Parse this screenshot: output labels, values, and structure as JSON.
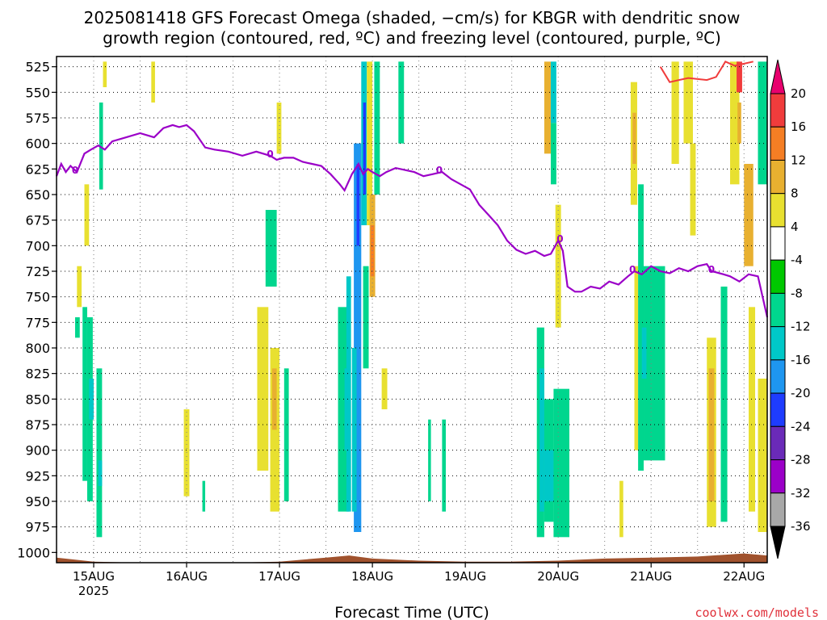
{
  "chart_data": {
    "type": "heatmap",
    "title_line1": "2025081418 GFS Forecast Omega (shaded, −cm/s) for KBGR with dendritic snow",
    "title_line2": "growth region (contoured, red, ºC) and freezing level (contoured, purple, ºC)",
    "xlabel": "Forecast Time (UTC)",
    "credit": "coolwx.com/models",
    "y_axis": {
      "unit": "hPa",
      "inverted": true,
      "range": [
        1010,
        515
      ],
      "ticks": [
        525,
        550,
        575,
        600,
        625,
        650,
        675,
        700,
        725,
        750,
        775,
        800,
        825,
        850,
        875,
        900,
        925,
        950,
        975,
        1000
      ]
    },
    "x_axis": {
      "range": [
        14.6,
        22.25
      ],
      "ticks": [
        {
          "day": 15,
          "label": "15AUG",
          "sublabel": "2025"
        },
        {
          "day": 16,
          "label": "16AUG",
          "sublabel": ""
        },
        {
          "day": 17,
          "label": "17AUG",
          "sublabel": ""
        },
        {
          "day": 18,
          "label": "18AUG",
          "sublabel": ""
        },
        {
          "day": 19,
          "label": "19AUG",
          "sublabel": ""
        },
        {
          "day": 20,
          "label": "20AUG",
          "sublabel": ""
        },
        {
          "day": 21,
          "label": "21AUG",
          "sublabel": ""
        },
        {
          "day": 22,
          "label": "22AUG",
          "sublabel": ""
        }
      ]
    },
    "colorbar": {
      "labels": [
        "20",
        "16",
        "12",
        "8",
        "4",
        "-4",
        "-8",
        "-12",
        "-16",
        "-20",
        "-24",
        "-28",
        "-32",
        "-36"
      ],
      "colors": [
        "#f03c3c",
        "#f57e24",
        "#e8b030",
        "#e8e030",
        "#ffffff",
        "#00c800",
        "#00d68e",
        "#00c8c8",
        "#1e96f0",
        "#1e3cff",
        "#6a2ab8",
        "#9b00c8",
        "#a8a8a8"
      ],
      "top_arrow_color": "#e8006e",
      "bottom_arrow_color": "#000000"
    },
    "omega_cells": [
      {
        "t0": 14.8,
        "t1": 14.85,
        "p0": 770,
        "p1": 790,
        "v": -8
      },
      {
        "t0": 14.88,
        "t1": 14.93,
        "p0": 760,
        "p1": 930,
        "v": -8
      },
      {
        "t0": 14.93,
        "t1": 14.99,
        "p0": 770,
        "p1": 950,
        "v": -8
      },
      {
        "t0": 14.95,
        "t1": 15.0,
        "p0": 830,
        "p1": 870,
        "v": -12
      },
      {
        "t0": 15.03,
        "t1": 15.09,
        "p0": 820,
        "p1": 985,
        "v": -8
      },
      {
        "t0": 15.05,
        "t1": 15.09,
        "p0": 910,
        "p1": 935,
        "v": -12
      },
      {
        "t0": 15.06,
        "t1": 15.1,
        "p0": 560,
        "p1": 645,
        "v": -8
      },
      {
        "t0": 14.9,
        "t1": 14.95,
        "p0": 640,
        "p1": 700,
        "v": 4
      },
      {
        "t0": 14.82,
        "t1": 14.87,
        "p0": 720,
        "p1": 760,
        "v": 4
      },
      {
        "t0": 15.1,
        "t1": 15.14,
        "p0": 520,
        "p1": 545,
        "v": 4
      },
      {
        "t0": 15.62,
        "t1": 15.66,
        "p0": 520,
        "p1": 560,
        "v": 4
      },
      {
        "t0": 15.97,
        "t1": 16.03,
        "p0": 860,
        "p1": 945,
        "v": 4
      },
      {
        "t0": 16.17,
        "t1": 16.2,
        "p0": 930,
        "p1": 960,
        "v": -8
      },
      {
        "t0": 16.85,
        "t1": 16.97,
        "p0": 665,
        "p1": 740,
        "v": -8
      },
      {
        "t0": 16.76,
        "t1": 16.88,
        "p0": 760,
        "p1": 920,
        "v": 4
      },
      {
        "t0": 16.9,
        "t1": 17.0,
        "p0": 800,
        "p1": 960,
        "v": 4
      },
      {
        "t0": 16.92,
        "t1": 16.97,
        "p0": 820,
        "p1": 880,
        "v": 12
      },
      {
        "t0": 16.97,
        "t1": 17.02,
        "p0": 560,
        "p1": 610,
        "v": 4
      },
      {
        "t0": 17.05,
        "t1": 17.1,
        "p0": 820,
        "p1": 950,
        "v": -8
      },
      {
        "t0": 17.63,
        "t1": 17.75,
        "p0": 760,
        "p1": 960,
        "v": -8
      },
      {
        "t0": 17.7,
        "t1": 17.76,
        "p0": 820,
        "p1": 900,
        "v": -12
      },
      {
        "t0": 17.72,
        "t1": 17.77,
        "p0": 730,
        "p1": 960,
        "v": -12
      },
      {
        "t0": 17.8,
        "t1": 17.88,
        "p0": 600,
        "p1": 980,
        "v": -16
      },
      {
        "t0": 17.83,
        "t1": 17.86,
        "p0": 620,
        "p1": 700,
        "v": -20
      },
      {
        "t0": 17.78,
        "t1": 17.83,
        "p0": 800,
        "p1": 960,
        "v": -12
      },
      {
        "t0": 17.88,
        "t1": 17.94,
        "p0": 520,
        "p1": 680,
        "v": -12
      },
      {
        "t0": 17.9,
        "t1": 17.93,
        "p0": 560,
        "p1": 650,
        "v": -20
      },
      {
        "t0": 17.94,
        "t1": 18.0,
        "p0": 520,
        "p1": 680,
        "v": 4
      },
      {
        "t0": 17.97,
        "t1": 18.03,
        "p0": 650,
        "p1": 750,
        "v": 12
      },
      {
        "t0": 17.98,
        "t1": 18.02,
        "p0": 680,
        "p1": 730,
        "v": 16
      },
      {
        "t0": 17.9,
        "t1": 17.96,
        "p0": 720,
        "p1": 820,
        "v": -8
      },
      {
        "t0": 18.02,
        "t1": 18.08,
        "p0": 520,
        "p1": 650,
        "v": -8
      },
      {
        "t0": 18.1,
        "t1": 18.16,
        "p0": 820,
        "p1": 860,
        "v": 4
      },
      {
        "t0": 18.28,
        "t1": 18.34,
        "p0": 520,
        "p1": 600,
        "v": -8
      },
      {
        "t0": 18.6,
        "t1": 18.63,
        "p0": 870,
        "p1": 950,
        "v": -8
      },
      {
        "t0": 18.75,
        "t1": 18.79,
        "p0": 870,
        "p1": 960,
        "v": -8
      },
      {
        "t0": 19.85,
        "t1": 19.92,
        "p0": 520,
        "p1": 610,
        "v": 12
      },
      {
        "t0": 19.92,
        "t1": 19.98,
        "p0": 520,
        "p1": 580,
        "v": -12
      },
      {
        "t0": 19.92,
        "t1": 19.98,
        "p0": 580,
        "p1": 640,
        "v": -8
      },
      {
        "t0": 19.97,
        "t1": 20.03,
        "p0": 660,
        "p1": 780,
        "v": 4
      },
      {
        "t0": 19.77,
        "t1": 19.85,
        "p0": 780,
        "p1": 985,
        "v": -8
      },
      {
        "t0": 19.8,
        "t1": 19.85,
        "p0": 820,
        "p1": 960,
        "v": -12
      },
      {
        "t0": 19.85,
        "t1": 19.95,
        "p0": 850,
        "p1": 970,
        "v": -8
      },
      {
        "t0": 19.85,
        "t1": 19.95,
        "p0": 900,
        "p1": 950,
        "v": -12
      },
      {
        "t0": 19.95,
        "t1": 20.12,
        "p0": 840,
        "p1": 985,
        "v": -8
      },
      {
        "t0": 20.66,
        "t1": 20.7,
        "p0": 930,
        "p1": 985,
        "v": 4
      },
      {
        "t0": 20.78,
        "t1": 20.85,
        "p0": 540,
        "p1": 660,
        "v": 4
      },
      {
        "t0": 20.8,
        "t1": 20.84,
        "p0": 570,
        "p1": 620,
        "v": 12
      },
      {
        "t0": 20.82,
        "t1": 20.86,
        "p0": 720,
        "p1": 900,
        "v": 4
      },
      {
        "t0": 20.86,
        "t1": 20.92,
        "p0": 640,
        "p1": 920,
        "v": -8
      },
      {
        "t0": 20.92,
        "t1": 21.15,
        "p0": 720,
        "p1": 910,
        "v": -8
      },
      {
        "t0": 20.9,
        "t1": 20.95,
        "p0": 780,
        "p1": 830,
        "v": -12
      },
      {
        "t0": 21.22,
        "t1": 21.3,
        "p0": 520,
        "p1": 620,
        "v": 4
      },
      {
        "t0": 21.35,
        "t1": 21.45,
        "p0": 520,
        "p1": 600,
        "v": 4
      },
      {
        "t0": 21.42,
        "t1": 21.48,
        "p0": 600,
        "p1": 690,
        "v": 4
      },
      {
        "t0": 21.6,
        "t1": 21.7,
        "p0": 790,
        "p1": 975,
        "v": 4
      },
      {
        "t0": 21.62,
        "t1": 21.68,
        "p0": 820,
        "p1": 950,
        "v": 12
      },
      {
        "t0": 21.75,
        "t1": 21.82,
        "p0": 740,
        "p1": 970,
        "v": -8
      },
      {
        "t0": 21.85,
        "t1": 21.95,
        "p0": 520,
        "p1": 640,
        "v": 4
      },
      {
        "t0": 21.92,
        "t1": 21.98,
        "p0": 520,
        "p1": 550,
        "v": 20
      },
      {
        "t0": 21.93,
        "t1": 21.97,
        "p0": 560,
        "p1": 600,
        "v": 12
      },
      {
        "t0": 22.0,
        "t1": 22.1,
        "p0": 620,
        "p1": 720,
        "v": 12
      },
      {
        "t0": 22.05,
        "t1": 22.12,
        "p0": 760,
        "p1": 960,
        "v": 4
      },
      {
        "t0": 22.15,
        "t1": 22.25,
        "p0": 520,
        "p1": 640,
        "v": -8
      },
      {
        "t0": 22.15,
        "t1": 22.25,
        "p0": 830,
        "p1": 980,
        "v": 4
      }
    ],
    "freezing_level": {
      "label": "0",
      "t": [
        14.6,
        14.65,
        14.7,
        14.75,
        14.82,
        14.9,
        14.97,
        15.05,
        15.12,
        15.2,
        15.35,
        15.5,
        15.65,
        15.75,
        15.85,
        15.92,
        16.0,
        16.08,
        16.2,
        16.3,
        16.45,
        16.6,
        16.75,
        16.9,
        16.97,
        17.05,
        17.15,
        17.25,
        17.35,
        17.45,
        17.55,
        17.65,
        17.7,
        17.78,
        17.85,
        17.9,
        17.95,
        18.0,
        18.08,
        18.15,
        18.25,
        18.35,
        18.45,
        18.55,
        18.65,
        18.75,
        18.85,
        18.95,
        19.05,
        19.15,
        19.25,
        19.35,
        19.45,
        19.55,
        19.65,
        19.75,
        19.85,
        19.92,
        20.0,
        20.05,
        20.1,
        20.18,
        20.25,
        20.35,
        20.45,
        20.55,
        20.65,
        20.75,
        20.82,
        20.9,
        21.0,
        21.1,
        21.2,
        21.3,
        21.4,
        21.5,
        21.6,
        21.65,
        21.7,
        21.78,
        21.85,
        21.95,
        22.05,
        22.15,
        22.25
      ],
      "p": [
        632,
        620,
        628,
        622,
        628,
        610,
        606,
        602,
        606,
        598,
        594,
        590,
        594,
        585,
        582,
        584,
        582,
        588,
        604,
        606,
        608,
        612,
        608,
        612,
        616,
        614,
        614,
        618,
        620,
        622,
        630,
        640,
        646,
        630,
        620,
        630,
        625,
        628,
        632,
        628,
        624,
        626,
        628,
        632,
        630,
        628,
        635,
        640,
        645,
        660,
        670,
        680,
        695,
        704,
        708,
        705,
        710,
        708,
        695,
        705,
        740,
        745,
        745,
        740,
        742,
        735,
        738,
        730,
        725,
        728,
        720,
        725,
        727,
        722,
        725,
        720,
        718,
        725,
        726,
        728,
        730,
        735,
        728,
        730,
        770
      ]
    },
    "dgz_contour": {
      "t": [
        21.1,
        21.2,
        21.3,
        21.4,
        21.5,
        21.6,
        21.7,
        21.8,
        21.9,
        22.0,
        22.1
      ],
      "p": [
        525,
        540,
        538,
        536,
        537,
        538,
        535,
        520,
        524,
        522,
        520
      ]
    },
    "ground": {
      "t": [
        14.6,
        15.0,
        15.5,
        16.0,
        16.5,
        17.0,
        17.5,
        17.75,
        18.0,
        18.5,
        19.0,
        19.5,
        20.0,
        20.5,
        21.0,
        21.5,
        22.0,
        22.25
      ],
      "p": [
        1005,
        1009,
        1011,
        1012,
        1011,
        1009,
        1005,
        1003,
        1006,
        1008,
        1009,
        1009,
        1008,
        1006,
        1005,
        1004,
        1001,
        1003
      ]
    },
    "grid": true
  }
}
